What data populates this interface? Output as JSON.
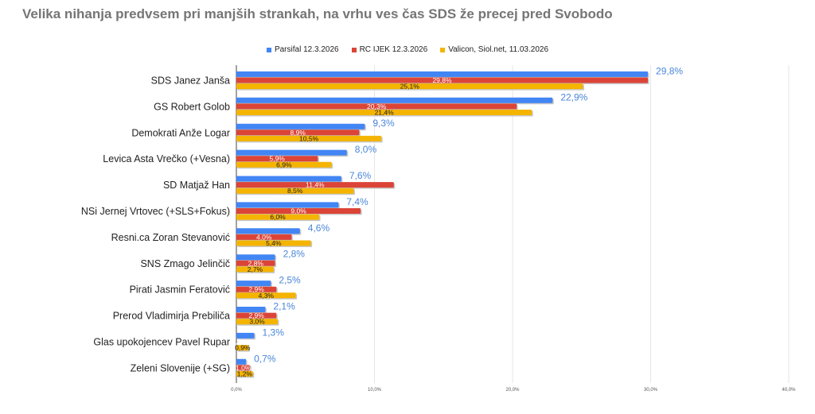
{
  "chart_data": {
    "type": "bar",
    "orientation": "horizontal",
    "title": "Velika nihanja predvsem pri manjših strankah, na vrhu ves čas SDS že precej pred Svobodo",
    "legend_position": "top",
    "grid": true,
    "xlim": [
      0,
      40
    ],
    "x_ticks": [
      "0,0%",
      "10,0%",
      "20,0%",
      "30,0%",
      "40,0%"
    ],
    "categories": [
      "SDS Janez Janša",
      "GS Robert Golob",
      "Demokrati Anže Logar",
      "Levica Asta Vrečko (+Vesna)",
      "SD Matjaž Han",
      "NSi Jernej Vrtovec (+SLS+Fokus)",
      "Resni.ca Zoran Stevanović",
      "SNS Zmago Jelinčič",
      "Pirati Jasmin Feratović",
      "Prerod Vladimirja Prebiliča",
      "Glas upokojencev Pavel Rupar",
      "Zeleni Slovenije (+SG)"
    ],
    "series": [
      {
        "name": "Parsifal 12.3.2026",
        "color": "#4285f4",
        "values": [
          29.8,
          22.9,
          9.3,
          8.0,
          7.6,
          7.4,
          4.6,
          2.8,
          2.5,
          2.1,
          1.3,
          0.7
        ],
        "labels": [
          "29,8%",
          "22,9%",
          "9,3%",
          "8,0%",
          "7,6%",
          "7,4%",
          "4,6%",
          "2,8%",
          "2,5%",
          "2,1%",
          "1,3%",
          "0,7%"
        ]
      },
      {
        "name": "RC IJEK 12.3.2026",
        "color": "#db4437",
        "values": [
          29.8,
          20.3,
          8.9,
          5.9,
          11.4,
          9.0,
          4.0,
          2.8,
          2.9,
          2.9,
          0.0,
          1.0
        ],
        "labels": [
          "29,8%",
          "20,3%",
          "8,9%",
          "5,9%",
          "11,4%",
          "9,0%",
          "4,0%",
          "2,8%",
          "2,9%",
          "2,9%",
          "0,0%",
          "1,0%"
        ]
      },
      {
        "name": "Valicon, Siol.net, 11.03.2026",
        "color": "#f4b400",
        "values": [
          25.1,
          21.4,
          10.5,
          6.9,
          8.5,
          6.0,
          5.4,
          2.7,
          4.3,
          3.0,
          0.9,
          1.2
        ],
        "labels": [
          "25,1%",
          "21,4%",
          "10,5%",
          "6,9%",
          "8,5%",
          "6,0%",
          "5,4%",
          "2,7%",
          "4,3%",
          "3,0%",
          "0,9%",
          "1,2%"
        ]
      }
    ],
    "label_colors": [
      "#4a86d9",
      "#ffffff",
      "#222222"
    ]
  }
}
